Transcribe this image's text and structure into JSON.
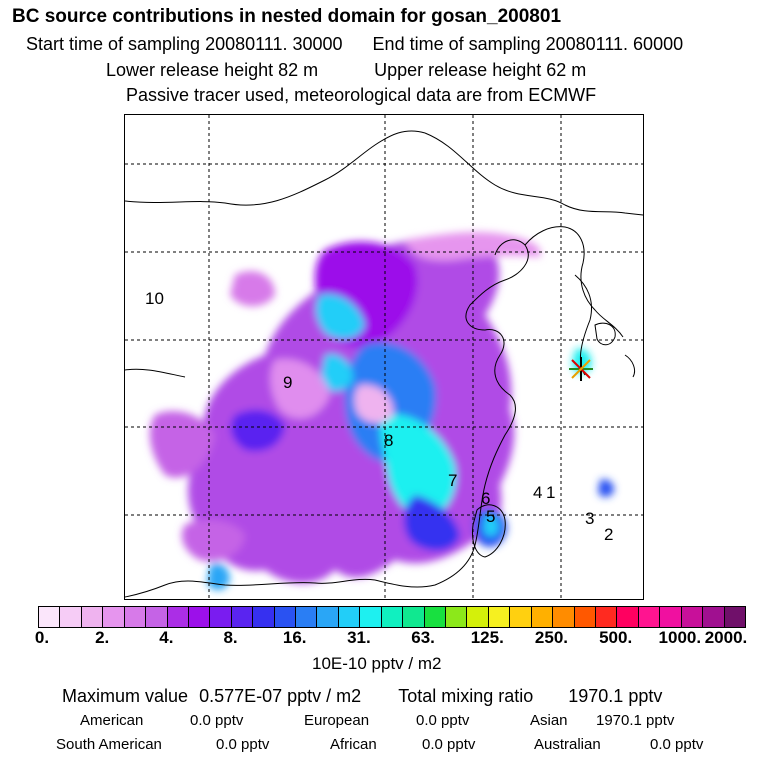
{
  "title": "BC  source contributions in nested domain for gosan_200801",
  "info": {
    "start": "Start time of sampling 20080111. 30000",
    "end": "End time of sampling 20080111. 60000",
    "lower": "Lower release height   82 m",
    "upper": "Upper release height   62 m",
    "tracer": "Passive tracer used, meteorological data are from ECMWF"
  },
  "regions": [
    "10",
    "9",
    "8",
    "7",
    "6",
    "5",
    "4",
    "1",
    "3",
    "2"
  ],
  "colorbar": {
    "colors": [
      "#fbe6fb",
      "#f6ccf6",
      "#efb3ef",
      "#e695ee",
      "#d77ae9",
      "#c563e6",
      "#ab2ee6",
      "#9c10ea",
      "#7a1cf0",
      "#5a24f0",
      "#3630f0",
      "#2a52f2",
      "#2a7ef4",
      "#2aa6f6",
      "#22cef8",
      "#1ef0f0",
      "#10f0c0",
      "#10e890",
      "#18e040",
      "#8ce81a",
      "#d4f00a",
      "#f6f020",
      "#ffd010",
      "#ffb000",
      "#ff8c00",
      "#ff5800",
      "#ff2a20",
      "#ff0060",
      "#ff1490",
      "#f010a0",
      "#c8109a",
      "#a01090",
      "#70106a"
    ],
    "ticks": [
      "0.",
      "2.",
      "4.",
      "8.",
      "16.",
      "31.",
      "63.",
      "125.",
      "250.",
      "500.",
      "1000.",
      "2000."
    ],
    "unit": "10E-10 pptv / m2"
  },
  "summary": {
    "max_label": "Maximum value",
    "max_value": "0.577E-07 pptv / m2",
    "total_label": "Total mixing ratio",
    "total_value": "1970.1 pptv",
    "rows": [
      [
        {
          "label": "American",
          "value": "0.0 pptv"
        },
        {
          "label": "European",
          "value": "0.0 pptv"
        },
        {
          "label": "Asian",
          "value": "1970.1 pptv"
        }
      ],
      [
        {
          "label": "South American",
          "value": "0.0 pptv"
        },
        {
          "label": "African",
          "value": "0.0 pptv"
        },
        {
          "label": "Australian",
          "value": "0.0 pptv"
        }
      ]
    ]
  }
}
